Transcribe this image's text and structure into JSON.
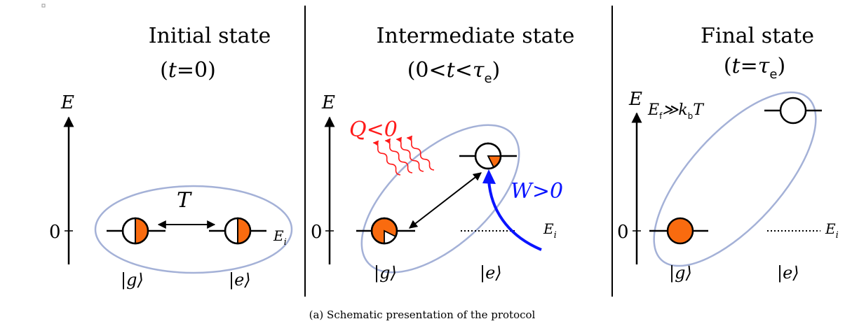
{
  "panels": [
    {
      "title": "Initial state",
      "time_prefix": "(",
      "time_var": "t",
      "time_rest": "=0)",
      "energy_axis": "E",
      "zero_label": "0",
      "coupling_label": "T",
      "energy_label": "E",
      "energy_sub": "i",
      "ket_g": "|g⟩",
      "ket_e": "|e⟩"
    },
    {
      "title": "Intermediate state",
      "time_prefix": "(0<",
      "time_var": "t",
      "time_mid": "<",
      "time_tau": "τ",
      "time_tau_sub": "e",
      "time_close": ")",
      "energy_axis": "E",
      "zero_label": "0",
      "heat_label": "Q<0",
      "work_label": "W>0",
      "energy_label": "E",
      "energy_sub": "i",
      "ket_g": "|g⟩",
      "ket_e": "|e⟩"
    },
    {
      "title": "Final state",
      "time_prefix": "(",
      "time_var": "t",
      "time_mid": "=",
      "time_tau": "τ",
      "time_tau_sub": "e",
      "time_close": ")",
      "energy_axis": "E",
      "zero_label": "0",
      "ef_E": "E",
      "ef_sub": "f",
      "ef_rel": "≫k",
      "ef_k_sub": "b",
      "ef_T": "T",
      "energy_label": "E",
      "energy_sub": "i",
      "ket_g": "|g⟩",
      "ket_e": "|e⟩"
    }
  ],
  "caption": "(a) Schematic presentation of the protocol",
  "colors": {
    "fill": "#f96b0f",
    "ellipse": "#a4b1d7",
    "heat": "#ff1a1a",
    "work": "#0a14ff",
    "ink": "#000000"
  }
}
